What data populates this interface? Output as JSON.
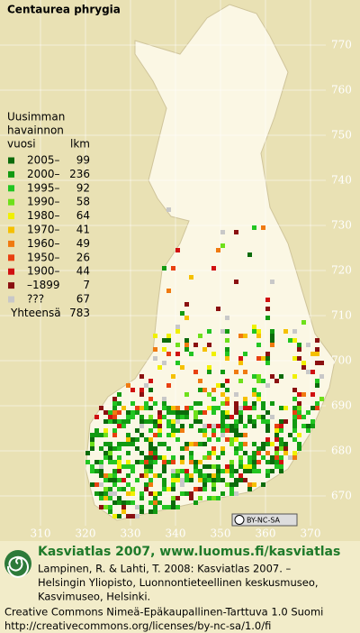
{
  "title": "Centaurea phrygia",
  "legend": {
    "header": [
      "Uusimman",
      "havainnon",
      "vuosi"
    ],
    "count_header": "lkm",
    "entries": [
      {
        "label": "2005–",
        "count": 99,
        "color": "#0b6b0b"
      },
      {
        "label": "2000–",
        "count": 236,
        "color": "#129a12"
      },
      {
        "label": "1995–",
        "count": 92,
        "color": "#22c522"
      },
      {
        "label": "1990–",
        "count": 58,
        "color": "#6ee01a"
      },
      {
        "label": "1980–",
        "count": 64,
        "color": "#f0f000"
      },
      {
        "label": "1970–",
        "count": 41,
        "color": "#f5c000"
      },
      {
        "label": "1960–",
        "count": 49,
        "color": "#f07a10"
      },
      {
        "label": "1950–",
        "count": 26,
        "color": "#e84010"
      },
      {
        "label": "1900–",
        "count": 44,
        "color": "#d01010"
      },
      {
        "label": "–1899",
        "count": 7,
        "color": "#8a1010"
      },
      {
        "label": "???",
        "count": 67,
        "color": "#c8c8c8"
      }
    ],
    "total_label": "Yhteensä",
    "total": 783
  },
  "y_labels": [
    770,
    760,
    750,
    740,
    730,
    720,
    710,
    700,
    690,
    680,
    670
  ],
  "x_labels": [
    310,
    320,
    330,
    340,
    350,
    360,
    370
  ],
  "license_badge": "BY-NC-SA",
  "footer": {
    "heading": "Kasviatlas 2007, www.luomus.fi/kasviatlas",
    "citation": [
      "Lampinen, R. & Lahti, T. 2008: Kasviatlas 2007. –",
      "Helsingin Yliopisto, Luonnontieteellinen keskusmuseo,",
      "Kasvimuseo, Helsinki."
    ],
    "license": [
      "Creative Commons Nimeä-Epäkaupallinen-Tarttuva 1.0 Suomi",
      "http://creativecommons.org/licenses/by-nc-sa/1.0/fi"
    ]
  }
}
